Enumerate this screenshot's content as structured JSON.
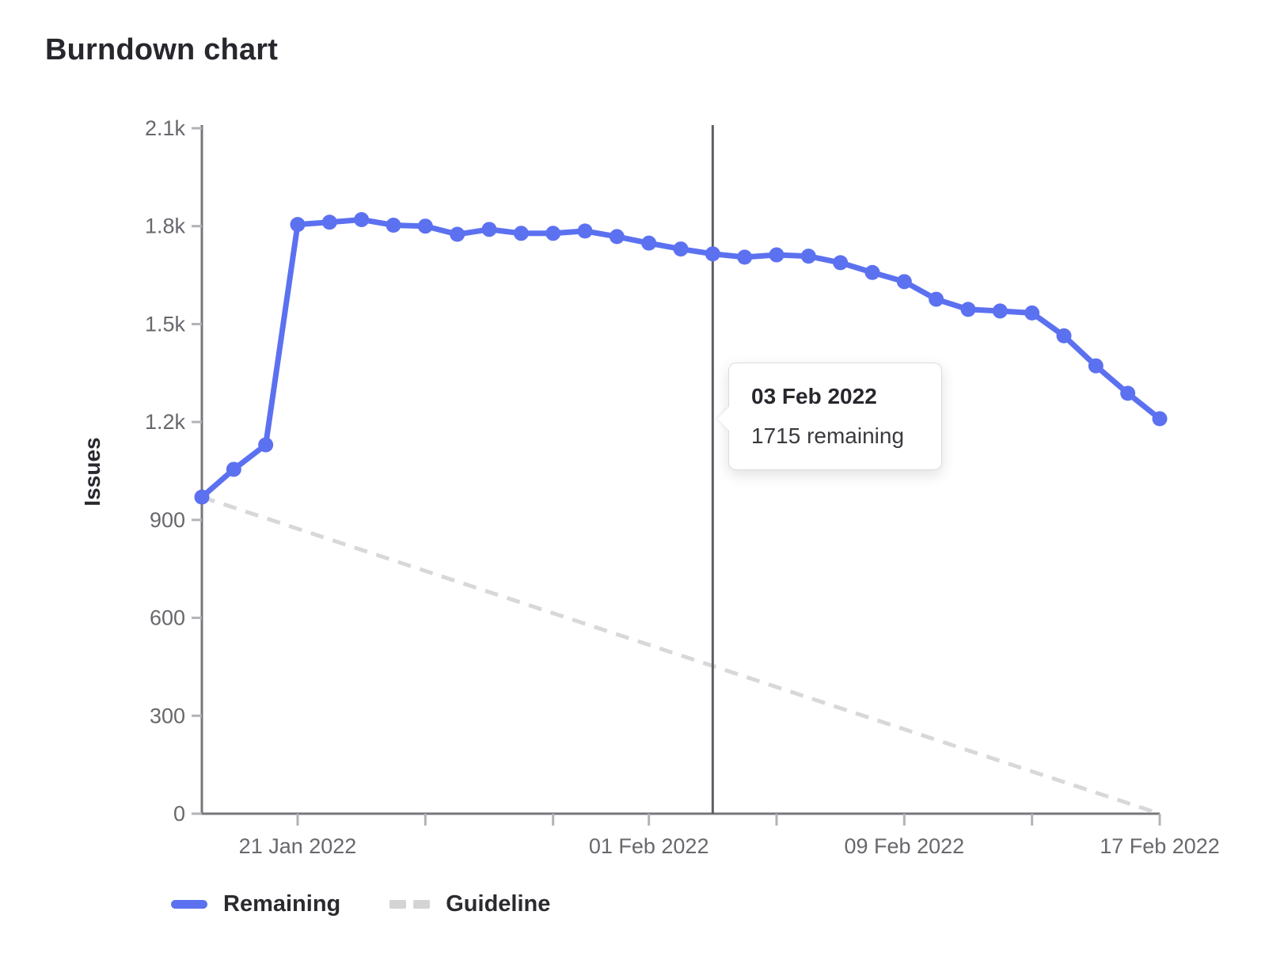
{
  "header": {
    "title": "Burndown chart"
  },
  "colors": {
    "remaining_line": "#5c71f0",
    "guideline": "#d8d8d8",
    "axis": "#77767b",
    "tick": "#b3b2b8",
    "today_line": "#5f5e64",
    "tick_text": "#68676d",
    "heading_text": "#28272d"
  },
  "tooltip": {
    "title": "03 Feb 2022",
    "body": "1715 remaining"
  },
  "chart_data": {
    "type": "line",
    "title": "Burndown chart",
    "xlabel": "",
    "ylabel": "Issues",
    "ylim": [
      0,
      2100
    ],
    "grid": false,
    "legend_position": "bottom-left",
    "x_unit": "day",
    "y_ticks": [
      {
        "v": 0,
        "label": "0"
      },
      {
        "v": 300,
        "label": "300"
      },
      {
        "v": 600,
        "label": "600"
      },
      {
        "v": 900,
        "label": "900"
      },
      {
        "v": 1200,
        "label": "1.2k"
      },
      {
        "v": 1500,
        "label": "1.5k"
      },
      {
        "v": 1800,
        "label": "1.8k"
      },
      {
        "v": 2100,
        "label": "2.1k"
      }
    ],
    "x_ticks": [
      {
        "i": 3,
        "label": "21 Jan 2022"
      },
      {
        "i": 7,
        "label": ""
      },
      {
        "i": 11,
        "label": ""
      },
      {
        "i": 14,
        "label": "01 Feb 2022"
      },
      {
        "i": 18,
        "label": ""
      },
      {
        "i": 22,
        "label": "09 Feb 2022"
      },
      {
        "i": 26,
        "label": ""
      },
      {
        "i": 30,
        "label": "17 Feb 2022"
      }
    ],
    "today": {
      "date": "03 Feb 2022",
      "index": 16
    },
    "series": [
      {
        "name": "Remaining",
        "style": "solid",
        "color": "#5c71f0",
        "dates": [
          "18 Jan 2022",
          "19 Jan 2022",
          "20 Jan 2022",
          "21 Jan 2022",
          "22 Jan 2022",
          "23 Jan 2022",
          "24 Jan 2022",
          "25 Jan 2022",
          "26 Jan 2022",
          "27 Jan 2022",
          "28 Jan 2022",
          "29 Jan 2022",
          "30 Jan 2022",
          "31 Jan 2022",
          "01 Feb 2022",
          "02 Feb 2022",
          "03 Feb 2022",
          "04 Feb 2022",
          "05 Feb 2022",
          "06 Feb 2022",
          "07 Feb 2022",
          "08 Feb 2022",
          "09 Feb 2022",
          "10 Feb 2022",
          "11 Feb 2022",
          "12 Feb 2022",
          "13 Feb 2022",
          "14 Feb 2022",
          "15 Feb 2022",
          "16 Feb 2022",
          "17 Feb 2022"
        ],
        "values": [
          970,
          1055,
          1130,
          1805,
          1812,
          1820,
          1803,
          1800,
          1775,
          1790,
          1778,
          1778,
          1785,
          1768,
          1748,
          1730,
          1715,
          1705,
          1712,
          1708,
          1688,
          1658,
          1630,
          1576,
          1545,
          1540,
          1534,
          1464,
          1372,
          1288,
          1210
        ]
      },
      {
        "name": "Guideline",
        "style": "dashed",
        "color": "#d8d8d8",
        "start_value": 970,
        "end_value": 0
      }
    ]
  }
}
